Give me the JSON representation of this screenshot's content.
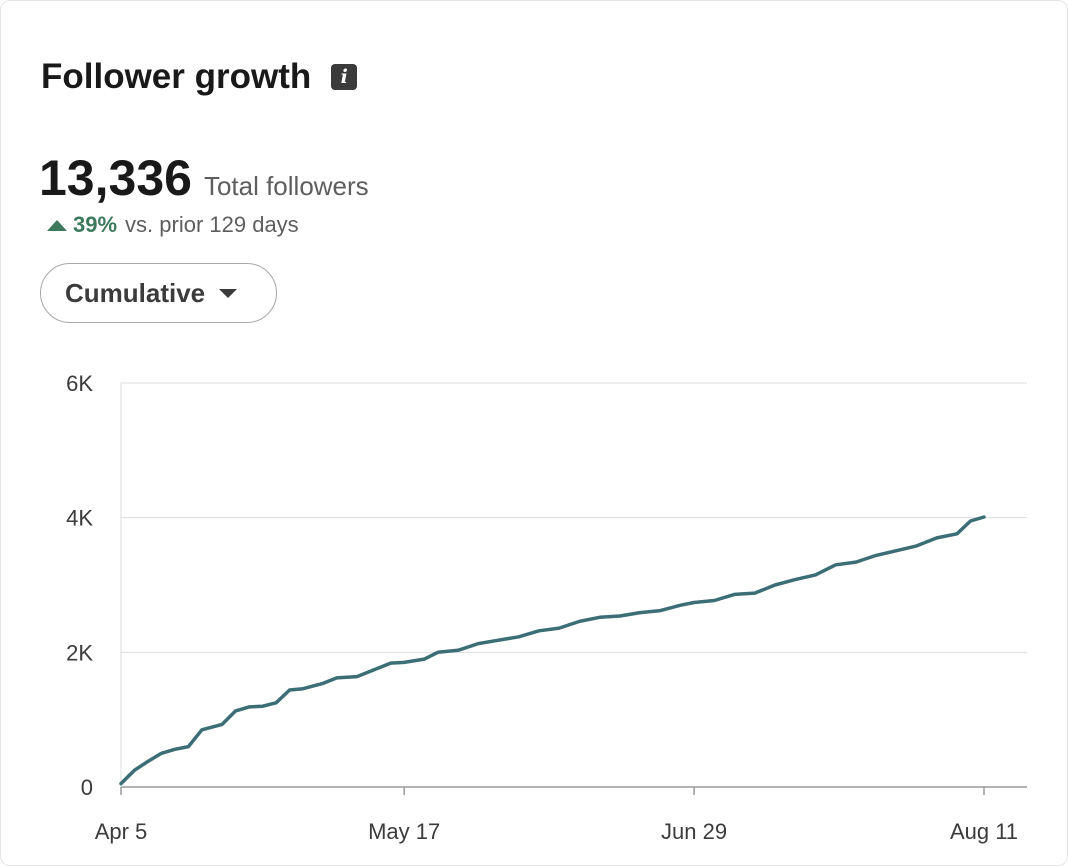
{
  "card": {
    "title": "Follower growth",
    "info_icon": "info-icon",
    "total_value": "13,336",
    "total_label": "Total followers",
    "growth_pct": "39%",
    "growth_text": "vs. prior 129 days",
    "growth_color": "#3d7a5c",
    "dropdown_label": "Cumulative"
  },
  "chart_data": {
    "type": "line",
    "title": "",
    "xlabel": "",
    "ylabel": "",
    "ylim": [
      0,
      6000
    ],
    "yticks": [
      0,
      2000,
      4000,
      6000
    ],
    "ytick_labels": [
      "0",
      "2K",
      "4K",
      "6K"
    ],
    "xticks": [
      "Apr 5",
      "May 17",
      "Jun 29",
      "Aug 11"
    ],
    "xlim": [
      "Apr 5",
      "Aug 11"
    ],
    "grid": true,
    "line_color": "#3c6e76",
    "series": [
      {
        "name": "",
        "x": [
          "Apr 5",
          "Apr 7",
          "Apr 9",
          "Apr 11",
          "Apr 13",
          "Apr 15",
          "Apr 17",
          "Apr 20",
          "Apr 22",
          "Apr 24",
          "Apr 26",
          "Apr 28",
          "Apr 30",
          "May 2",
          "May 5",
          "May 7",
          "May 10",
          "May 13",
          "May 15",
          "May 17",
          "May 20",
          "May 22",
          "May 25",
          "May 28",
          "May 31",
          "Jun 3",
          "Jun 6",
          "Jun 9",
          "Jun 12",
          "Jun 15",
          "Jun 18",
          "Jun 21",
          "Jun 24",
          "Jun 27",
          "Jun 29",
          "Jul 2",
          "Jul 5",
          "Jul 8",
          "Jul 11",
          "Jul 14",
          "Jul 17",
          "Jul 20",
          "Jul 23",
          "Jul 26",
          "Jul 29",
          "Aug 1",
          "Aug 4",
          "Aug 7",
          "Aug 9",
          "Aug 11"
        ],
        "values": [
          50,
          250,
          380,
          500,
          560,
          600,
          850,
          930,
          1130,
          1190,
          1200,
          1250,
          1440,
          1460,
          1540,
          1620,
          1640,
          1760,
          1840,
          1850,
          1900,
          2000,
          2030,
          2130,
          2180,
          2230,
          2320,
          2360,
          2460,
          2520,
          2540,
          2590,
          2620,
          2700,
          2740,
          2770,
          2860,
          2880,
          3000,
          3080,
          3150,
          3300,
          3340,
          3440,
          3510,
          3580,
          3700,
          3760,
          3950,
          4010
        ]
      }
    ]
  }
}
